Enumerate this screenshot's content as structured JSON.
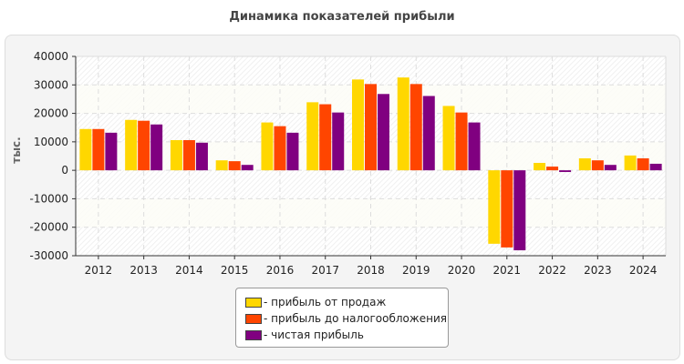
{
  "chart_data": {
    "type": "bar",
    "title": "Динамика показателей прибыли",
    "ylabel": "тыс.",
    "xlabel": "",
    "ylim": [
      -30000,
      40000
    ],
    "yticks": [
      40000,
      30000,
      20000,
      10000,
      0,
      -10000,
      -20000,
      -30000
    ],
    "grid": true,
    "legend_position": "bottom",
    "categories": [
      "2012",
      "2013",
      "2014",
      "2015",
      "2016",
      "2017",
      "2018",
      "2019",
      "2020",
      "2021",
      "2022",
      "2023",
      "2024"
    ],
    "series": [
      {
        "name": "- прибыль от продаж",
        "color": "#FFD700",
        "values": [
          14500,
          17700,
          10600,
          3500,
          16800,
          23900,
          31900,
          32600,
          22600,
          -25800,
          2600,
          4200,
          5200
        ]
      },
      {
        "name": "- прибыль до налогообложения",
        "color": "#FF4500",
        "values": [
          14500,
          17400,
          10600,
          3200,
          15500,
          23200,
          30300,
          30300,
          20300,
          -27100,
          1300,
          3500,
          4200
        ]
      },
      {
        "name": "- чистая прибыль",
        "color": "#800080",
        "values": [
          13200,
          16100,
          9700,
          1900,
          13200,
          20300,
          26800,
          26100,
          16800,
          -28100,
          -600,
          1900,
          2300
        ]
      }
    ]
  }
}
